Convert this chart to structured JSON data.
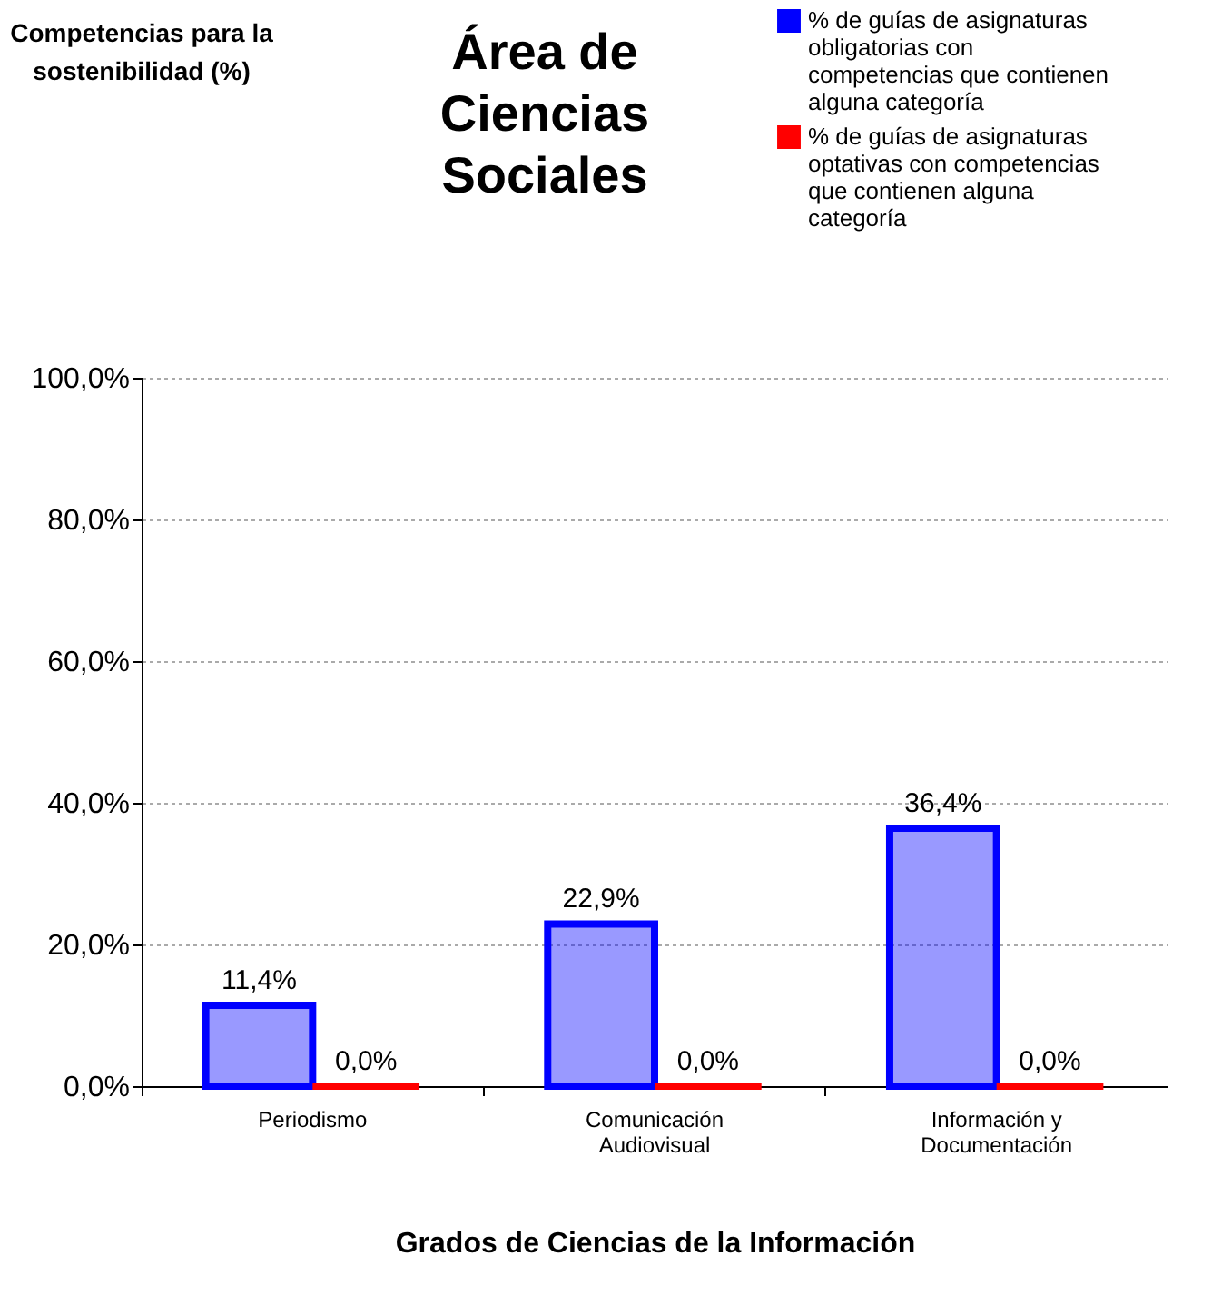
{
  "chart_data": {
    "type": "bar",
    "title": "Área de Ciencias Sociales",
    "annotations": [
      "Competencias para la sostenibilidad (%)"
    ],
    "xlabel": "Grados de Ciencias de la Información",
    "categories": [
      "Periodismo",
      "Comunicación Audiovisual",
      "Información y Documentación"
    ],
    "series": [
      {
        "name": "% de guías de asignaturas obligatorias con competencias que contienen alguna categoría",
        "color": "#0000ff",
        "values": [
          11.4,
          22.9,
          36.4
        ],
        "value_labels": [
          "11,4%",
          "22,9%",
          "36,4%"
        ]
      },
      {
        "name": "% de guías de asignaturas optativas con competencias que contienen alguna categoría",
        "color": "#ff0000",
        "values": [
          0.0,
          0.0,
          0.0
        ],
        "value_labels": [
          "0,0%",
          "0,0%",
          "0,0%"
        ]
      }
    ],
    "ylim": [
      0,
      100
    ],
    "yticks": [
      {
        "value": 0,
        "label": "0,0%"
      },
      {
        "value": 20,
        "label": "20,0%"
      },
      {
        "value": 40,
        "label": "40,0%"
      },
      {
        "value": 60,
        "label": "60,0%"
      },
      {
        "value": 80,
        "label": "80,0%"
      },
      {
        "value": 100,
        "label": "100,0%"
      }
    ],
    "grid": "y",
    "legend": "top right"
  }
}
